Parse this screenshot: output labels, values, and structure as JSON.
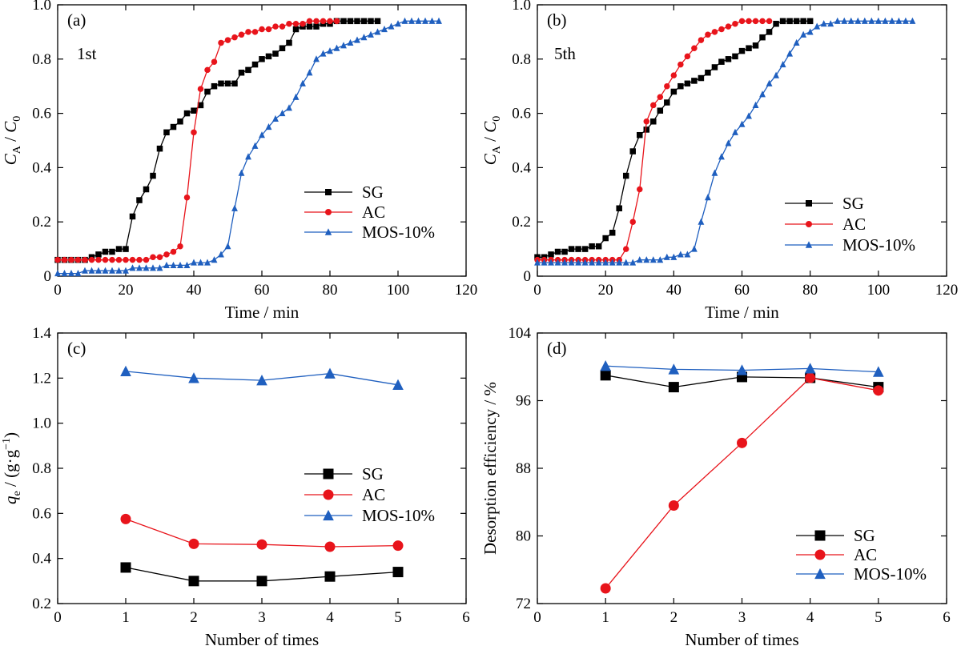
{
  "colors": {
    "SG": "#000000",
    "AC": "#e8141b",
    "MOS-10%": "#1f5fbf"
  },
  "chart_data": [
    {
      "type": "line",
      "panel_label": "(a)",
      "annotation": "1st",
      "xlabel": "Time / min",
      "ylabel_html": "C<tspan baseline-shift='sub' font-size='14'>A</tspan> / C<tspan baseline-shift='sub' font-size='14'>0</tspan>",
      "ylabel_main": "C",
      "ylabel_sub1": "A",
      "ylabel_mid": " / C",
      "ylabel_sub2": "0",
      "xlim": [
        0,
        120
      ],
      "ylim": [
        0,
        1.0
      ],
      "xticks": [
        0,
        20,
        40,
        60,
        80,
        100,
        120
      ],
      "yticks": [
        0,
        0.2,
        0.4,
        0.6,
        0.8,
        1.0
      ],
      "ytick_labels": [
        "0",
        "0.2",
        "0.4",
        "0.6",
        "0.8",
        "1.0"
      ],
      "grid": false,
      "legend": "center-right",
      "series": [
        {
          "name": "SG",
          "marker": "square",
          "x": [
            0,
            2,
            4,
            6,
            8,
            10,
            12,
            14,
            16,
            18,
            20,
            22,
            24,
            26,
            28,
            30,
            32,
            34,
            36,
            38,
            40,
            42,
            44,
            46,
            48,
            50,
            52,
            54,
            56,
            58,
            60,
            62,
            64,
            66,
            68,
            70,
            72,
            74,
            76,
            78,
            80,
            82,
            84,
            86,
            88,
            90,
            92,
            94
          ],
          "y": [
            0.06,
            0.06,
            0.06,
            0.06,
            0.06,
            0.07,
            0.08,
            0.09,
            0.09,
            0.1,
            0.1,
            0.22,
            0.28,
            0.32,
            0.37,
            0.47,
            0.53,
            0.55,
            0.57,
            0.6,
            0.61,
            0.63,
            0.68,
            0.7,
            0.71,
            0.71,
            0.71,
            0.75,
            0.76,
            0.78,
            0.8,
            0.81,
            0.82,
            0.84,
            0.86,
            0.91,
            0.92,
            0.92,
            0.92,
            0.93,
            0.93,
            0.94,
            0.94,
            0.94,
            0.94,
            0.94,
            0.94,
            0.94
          ]
        },
        {
          "name": "AC",
          "marker": "circle",
          "x": [
            0,
            2,
            4,
            6,
            8,
            10,
            12,
            14,
            16,
            18,
            20,
            22,
            24,
            26,
            28,
            30,
            32,
            34,
            36,
            38,
            40,
            42,
            44,
            46,
            48,
            50,
            52,
            54,
            56,
            58,
            60,
            62,
            64,
            66,
            68,
            70,
            72,
            74,
            76,
            78,
            80,
            82
          ],
          "y": [
            0.06,
            0.06,
            0.06,
            0.06,
            0.06,
            0.06,
            0.06,
            0.06,
            0.06,
            0.06,
            0.06,
            0.06,
            0.06,
            0.06,
            0.07,
            0.07,
            0.08,
            0.09,
            0.11,
            0.29,
            0.53,
            0.69,
            0.76,
            0.79,
            0.86,
            0.87,
            0.88,
            0.89,
            0.9,
            0.9,
            0.91,
            0.91,
            0.92,
            0.92,
            0.93,
            0.93,
            0.93,
            0.94,
            0.94,
            0.94,
            0.94,
            0.94
          ]
        },
        {
          "name": "MOS-10%",
          "marker": "triangle",
          "x": [
            0,
            2,
            4,
            6,
            8,
            10,
            12,
            14,
            16,
            18,
            20,
            22,
            24,
            26,
            28,
            30,
            32,
            34,
            36,
            38,
            40,
            42,
            44,
            46,
            48,
            50,
            52,
            54,
            56,
            58,
            60,
            62,
            64,
            66,
            68,
            70,
            72,
            74,
            76,
            78,
            80,
            82,
            84,
            86,
            88,
            90,
            92,
            94,
            96,
            98,
            100,
            102,
            104,
            106,
            108,
            110,
            112
          ],
          "y": [
            0.01,
            0.01,
            0.01,
            0.01,
            0.02,
            0.02,
            0.02,
            0.02,
            0.02,
            0.02,
            0.02,
            0.03,
            0.03,
            0.03,
            0.03,
            0.03,
            0.04,
            0.04,
            0.04,
            0.04,
            0.05,
            0.05,
            0.05,
            0.06,
            0.08,
            0.11,
            0.25,
            0.38,
            0.44,
            0.48,
            0.52,
            0.55,
            0.58,
            0.6,
            0.62,
            0.66,
            0.71,
            0.75,
            0.8,
            0.82,
            0.83,
            0.84,
            0.85,
            0.86,
            0.87,
            0.88,
            0.89,
            0.9,
            0.91,
            0.92,
            0.93,
            0.94,
            0.94,
            0.94,
            0.94,
            0.94,
            0.94
          ]
        }
      ]
    },
    {
      "type": "line",
      "panel_label": "(b)",
      "annotation": "5th",
      "xlabel": "Time / min",
      "ylabel_main": "C",
      "ylabel_sub1": "A",
      "ylabel_mid": " / C",
      "ylabel_sub2": "0",
      "xlim": [
        0,
        120
      ],
      "ylim": [
        0,
        1.0
      ],
      "xticks": [
        0,
        20,
        40,
        60,
        80,
        100,
        120
      ],
      "yticks": [
        0,
        0.2,
        0.4,
        0.6,
        0.8,
        1.0
      ],
      "ytick_labels": [
        "0",
        "0.2",
        "0.4",
        "0.6",
        "0.8",
        "1.0"
      ],
      "grid": false,
      "legend": "center-right",
      "series": [
        {
          "name": "SG",
          "marker": "square",
          "x": [
            0,
            2,
            4,
            6,
            8,
            10,
            12,
            14,
            16,
            18,
            20,
            22,
            24,
            26,
            28,
            30,
            32,
            34,
            36,
            38,
            40,
            42,
            44,
            46,
            48,
            50,
            52,
            54,
            56,
            58,
            60,
            62,
            64,
            66,
            68,
            70,
            72,
            74,
            76,
            78,
            80
          ],
          "y": [
            0.07,
            0.07,
            0.08,
            0.09,
            0.09,
            0.1,
            0.1,
            0.1,
            0.11,
            0.11,
            0.14,
            0.16,
            0.25,
            0.37,
            0.46,
            0.52,
            0.54,
            0.57,
            0.61,
            0.64,
            0.68,
            0.7,
            0.71,
            0.72,
            0.73,
            0.75,
            0.77,
            0.79,
            0.8,
            0.81,
            0.83,
            0.84,
            0.85,
            0.88,
            0.9,
            0.93,
            0.94,
            0.94,
            0.94,
            0.94,
            0.94
          ]
        },
        {
          "name": "AC",
          "marker": "circle",
          "x": [
            0,
            2,
            4,
            6,
            8,
            10,
            12,
            14,
            16,
            18,
            20,
            22,
            24,
            26,
            28,
            30,
            32,
            34,
            36,
            38,
            40,
            42,
            44,
            46,
            48,
            50,
            52,
            54,
            56,
            58,
            60,
            62,
            64,
            66,
            68
          ],
          "y": [
            0.06,
            0.06,
            0.06,
            0.06,
            0.06,
            0.06,
            0.06,
            0.06,
            0.06,
            0.06,
            0.06,
            0.06,
            0.06,
            0.1,
            0.2,
            0.32,
            0.57,
            0.63,
            0.66,
            0.7,
            0.74,
            0.78,
            0.81,
            0.84,
            0.87,
            0.89,
            0.9,
            0.91,
            0.92,
            0.93,
            0.94,
            0.94,
            0.94,
            0.94,
            0.94
          ]
        },
        {
          "name": "MOS-10%",
          "marker": "triangle",
          "x": [
            0,
            2,
            4,
            6,
            8,
            10,
            12,
            14,
            16,
            18,
            20,
            22,
            24,
            26,
            28,
            30,
            32,
            34,
            36,
            38,
            40,
            42,
            44,
            46,
            48,
            50,
            52,
            54,
            56,
            58,
            60,
            62,
            64,
            66,
            68,
            70,
            72,
            74,
            76,
            78,
            80,
            82,
            84,
            86,
            88,
            90,
            92,
            94,
            96,
            98,
            100,
            102,
            104,
            106,
            108,
            110
          ],
          "y": [
            0.05,
            0.05,
            0.05,
            0.05,
            0.05,
            0.05,
            0.05,
            0.05,
            0.05,
            0.05,
            0.05,
            0.05,
            0.05,
            0.05,
            0.05,
            0.06,
            0.06,
            0.06,
            0.06,
            0.07,
            0.07,
            0.08,
            0.08,
            0.1,
            0.2,
            0.29,
            0.38,
            0.44,
            0.49,
            0.53,
            0.56,
            0.59,
            0.63,
            0.67,
            0.71,
            0.74,
            0.78,
            0.82,
            0.86,
            0.89,
            0.9,
            0.92,
            0.93,
            0.93,
            0.94,
            0.94,
            0.94,
            0.94,
            0.94,
            0.94,
            0.94,
            0.94,
            0.94,
            0.94,
            0.94,
            0.94
          ]
        }
      ]
    },
    {
      "type": "line",
      "panel_label": "(c)",
      "xlabel": "Number of times",
      "ylabel_main": "q",
      "ylabel_sub1": "e",
      "ylabel_mid": " / (g·g",
      "ylabel_sup": "−1",
      "ylabel_end": ")",
      "xlim": [
        0,
        6
      ],
      "ylim": [
        0.2,
        1.4
      ],
      "xticks": [
        0,
        1,
        2,
        3,
        4,
        5,
        6
      ],
      "yticks": [
        0.2,
        0.4,
        0.6,
        0.8,
        1.0,
        1.2,
        1.4
      ],
      "ytick_labels": [
        "0.2",
        "0.4",
        "0.6",
        "0.8",
        "1.0",
        "1.2",
        "1.4"
      ],
      "grid": false,
      "legend": "center-right",
      "series": [
        {
          "name": "SG",
          "marker": "square",
          "x": [
            1,
            2,
            3,
            4,
            5
          ],
          "y": [
            0.36,
            0.3,
            0.3,
            0.32,
            0.34
          ]
        },
        {
          "name": "AC",
          "marker": "circle",
          "x": [
            1,
            2,
            3,
            4,
            5
          ],
          "y": [
            0.575,
            0.465,
            0.462,
            0.452,
            0.457
          ]
        },
        {
          "name": "MOS-10%",
          "marker": "triangle",
          "x": [
            1,
            2,
            3,
            4,
            5
          ],
          "y": [
            1.23,
            1.2,
            1.19,
            1.22,
            1.17
          ]
        }
      ]
    },
    {
      "type": "line",
      "panel_label": "(d)",
      "xlabel": "Number of times",
      "ylabel": "Desorption efficiency / %",
      "xlim": [
        0,
        6
      ],
      "ylim": [
        72,
        104
      ],
      "xticks": [
        0,
        1,
        2,
        3,
        4,
        5,
        6
      ],
      "yticks": [
        72,
        80,
        88,
        96,
        104
      ],
      "ytick_labels": [
        "72",
        "80",
        "88",
        "96",
        "104"
      ],
      "grid": false,
      "legend": "bottom-right",
      "series": [
        {
          "name": "SG",
          "marker": "square",
          "x": [
            1,
            2,
            3,
            4,
            5
          ],
          "y": [
            99.0,
            97.6,
            98.8,
            98.7,
            97.6
          ]
        },
        {
          "name": "AC",
          "marker": "circle",
          "x": [
            1,
            2,
            3,
            4,
            5
          ],
          "y": [
            73.8,
            83.6,
            91.0,
            98.7,
            97.2
          ]
        },
        {
          "name": "MOS-10%",
          "marker": "triangle",
          "x": [
            1,
            2,
            3,
            4,
            5
          ],
          "y": [
            100.1,
            99.7,
            99.6,
            99.8,
            99.4
          ]
        }
      ]
    }
  ]
}
